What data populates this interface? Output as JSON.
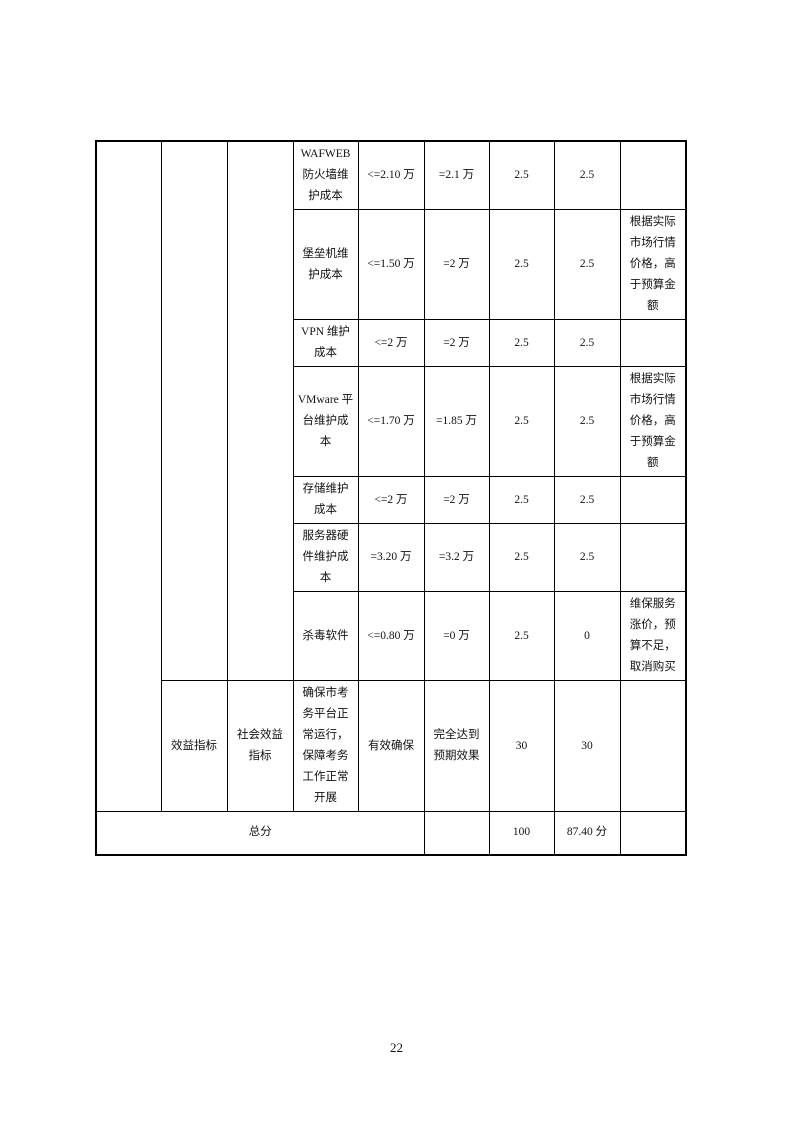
{
  "table": {
    "rows": [
      {
        "item": "WAFWEB防火墙维护成本",
        "target": "<=2.10 万",
        "actual": "=2.1 万",
        "weight": "2.5",
        "score": "2.5",
        "note": ""
      },
      {
        "item": "堡垒机维护成本",
        "target": "<=1.50 万",
        "actual": "=2 万",
        "weight": "2.5",
        "score": "2.5",
        "note": "根据实际市场行情价格，高于预算金额"
      },
      {
        "item": "VPN 维护成本",
        "target": "<=2 万",
        "actual": "=2 万",
        "weight": "2.5",
        "score": "2.5",
        "note": ""
      },
      {
        "item": "VMware 平台维护成本",
        "target": "<=1.70 万",
        "actual": "=1.85 万",
        "weight": "2.5",
        "score": "2.5",
        "note": "根据实际市场行情价格，高于预算金额"
      },
      {
        "item": "存储维护成本",
        "target": "<=2 万",
        "actual": "=2 万",
        "weight": "2.5",
        "score": "2.5",
        "note": ""
      },
      {
        "item": "服务器硬件维护成本",
        "target": "=3.20 万",
        "actual": "=3.2 万",
        "weight": "2.5",
        "score": "2.5",
        "note": ""
      },
      {
        "item": "杀毒软件",
        "target": "<=0.80 万",
        "actual": "=0 万",
        "weight": "2.5",
        "score": "0",
        "note": "维保服务涨价，预算不足，取消购买"
      }
    ],
    "benefit": {
      "level1": "效益指标",
      "level2": "社会效益指标",
      "item": "确保市考务平台正常运行，保障考务工作正常开展",
      "target": "有效确保",
      "actual": "完全达到预期效果",
      "weight": "30",
      "score": "30",
      "note": ""
    },
    "total": {
      "label": "总分",
      "actual": "",
      "weight": "100",
      "score": "87.40 分",
      "note": ""
    }
  },
  "page_number": "22"
}
